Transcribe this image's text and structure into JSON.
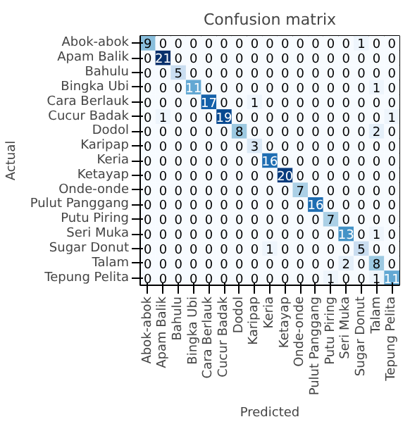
{
  "chart_data": {
    "type": "heatmap",
    "title": "Confusion matrix",
    "xlabel": "Predicted",
    "ylabel": "Actual",
    "grid": false,
    "data_labels": true,
    "categories": [
      "Abok-abok",
      "Apam Balik",
      "Bahulu",
      "Bingka Ubi",
      "Cara Berlauk",
      "Cucur Badak",
      "Dodol",
      "Karipap",
      "Keria",
      "Ketayap",
      "Onde-onde",
      "Pulut Panggang",
      "Putu Piring",
      "Seri Muka",
      "Sugar Donut",
      "Talam",
      "Tepung Pelita"
    ],
    "y_categories": [
      "Abok-abok",
      "Apam Balik",
      "Bahulu",
      "Bingka Ubi",
      "Cara Berlauk",
      "Cucur Badak",
      "Dodol",
      "Karipap",
      "Keria",
      "Ketayap",
      "Onde-onde",
      "Pulut Panggang",
      "Putu Piring",
      "Seri Muka",
      "Sugar Donut",
      "Talam",
      "Tepung Pelita"
    ],
    "cells": [
      [
        9,
        0,
        0,
        0,
        0,
        0,
        0,
        0,
        0,
        0,
        0,
        0,
        0,
        0,
        1,
        0,
        0
      ],
      [
        0,
        21,
        0,
        0,
        0,
        0,
        0,
        0,
        0,
        0,
        0,
        0,
        0,
        0,
        0,
        0,
        0
      ],
      [
        0,
        0,
        5,
        0,
        0,
        0,
        0,
        0,
        0,
        0,
        0,
        0,
        0,
        0,
        0,
        0,
        0
      ],
      [
        0,
        0,
        0,
        11,
        0,
        0,
        0,
        0,
        0,
        0,
        0,
        0,
        0,
        0,
        0,
        1,
        0
      ],
      [
        0,
        0,
        0,
        0,
        17,
        0,
        0,
        1,
        0,
        0,
        0,
        0,
        0,
        0,
        0,
        0,
        0
      ],
      [
        0,
        1,
        0,
        0,
        0,
        19,
        0,
        0,
        0,
        0,
        0,
        0,
        0,
        0,
        0,
        0,
        1
      ],
      [
        0,
        0,
        0,
        0,
        0,
        0,
        8,
        0,
        0,
        0,
        0,
        0,
        0,
        0,
        0,
        2,
        0
      ],
      [
        0,
        0,
        0,
        0,
        0,
        0,
        0,
        3,
        0,
        0,
        0,
        0,
        0,
        0,
        0,
        0,
        0
      ],
      [
        0,
        0,
        0,
        0,
        0,
        0,
        0,
        0,
        16,
        0,
        0,
        0,
        0,
        0,
        0,
        0,
        0
      ],
      [
        0,
        0,
        0,
        0,
        0,
        0,
        0,
        0,
        0,
        20,
        0,
        0,
        0,
        0,
        0,
        0,
        0
      ],
      [
        0,
        0,
        0,
        0,
        0,
        0,
        0,
        0,
        0,
        0,
        7,
        0,
        0,
        0,
        0,
        0,
        0
      ],
      [
        0,
        0,
        0,
        0,
        0,
        0,
        0,
        0,
        0,
        0,
        0,
        16,
        0,
        0,
        0,
        0,
        0
      ],
      [
        0,
        0,
        0,
        0,
        0,
        0,
        0,
        0,
        0,
        0,
        0,
        0,
        7,
        0,
        0,
        0,
        0
      ],
      [
        0,
        0,
        0,
        0,
        0,
        0,
        0,
        0,
        0,
        0,
        0,
        0,
        0,
        13,
        0,
        1,
        0
      ],
      [
        0,
        0,
        0,
        0,
        0,
        0,
        0,
        0,
        1,
        0,
        0,
        0,
        0,
        0,
        5,
        0,
        0
      ],
      [
        0,
        0,
        0,
        0,
        0,
        0,
        0,
        0,
        0,
        0,
        0,
        0,
        0,
        2,
        0,
        8,
        0
      ],
      [
        0,
        0,
        0,
        0,
        0,
        0,
        0,
        0,
        0,
        0,
        0,
        0,
        1,
        0,
        0,
        1,
        11
      ]
    ]
  }
}
